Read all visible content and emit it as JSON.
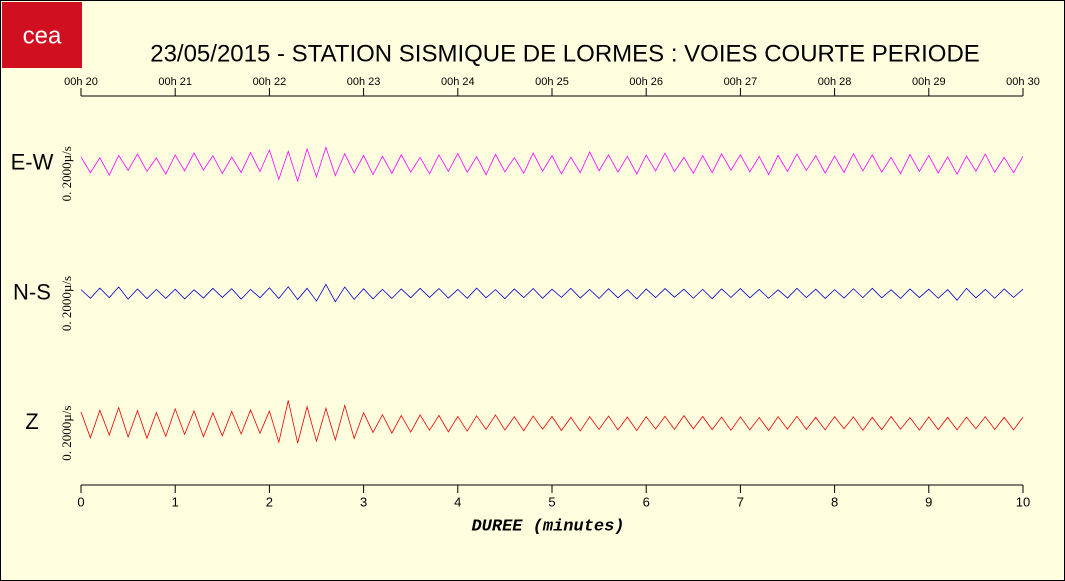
{
  "logo": "cea",
  "chart_data": {
    "type": "line",
    "title": "23/05/2015  -  STATION SISMIQUE DE LORMES : VOIES COURTE PERIODE",
    "x_label": "DUREE (minutes)",
    "xlim": [
      0,
      10
    ],
    "xticks": [
      0,
      1,
      2,
      3,
      4,
      5,
      6,
      7,
      8,
      9,
      10
    ],
    "top_xticks": [
      {
        "value": 0,
        "label": "00h 20"
      },
      {
        "value": 1,
        "label": "00h 21"
      },
      {
        "value": 2,
        "label": "00h 22"
      },
      {
        "value": 3,
        "label": "00h 23"
      },
      {
        "value": 4,
        "label": "00h 24"
      },
      {
        "value": 5,
        "label": "00h 25"
      },
      {
        "value": 6,
        "label": "00h 26"
      },
      {
        "value": 7,
        "label": "00h 27"
      },
      {
        "value": 8,
        "label": "00h 28"
      },
      {
        "value": 9,
        "label": "00h 29"
      },
      {
        "value": 10,
        "label": "00h 30"
      }
    ],
    "ylim": [
      -3000,
      3000
    ],
    "x": [
      0,
      0.1,
      0.2,
      0.3,
      0.4,
      0.5,
      0.6,
      0.7,
      0.8,
      0.9,
      1,
      1.1,
      1.2,
      1.3,
      1.4,
      1.5,
      1.6,
      1.7,
      1.8,
      1.9,
      2,
      2.1,
      2.2,
      2.3,
      2.4,
      2.5,
      2.6,
      2.7,
      2.8,
      2.9,
      3,
      3.1,
      3.2,
      3.3,
      3.4,
      3.5,
      3.6,
      3.7,
      3.8,
      3.9,
      4,
      4.1,
      4.2,
      4.3,
      4.4,
      4.5,
      4.6,
      4.7,
      4.8,
      4.9,
      5,
      5.1,
      5.2,
      5.3,
      5.4,
      5.5,
      5.6,
      5.7,
      5.8,
      5.9,
      6,
      6.1,
      6.2,
      6.3,
      6.4,
      6.5,
      6.6,
      6.7,
      6.8,
      6.9,
      7,
      7.1,
      7.2,
      7.3,
      7.4,
      7.5,
      7.6,
      7.7,
      7.8,
      7.9,
      8,
      8.1,
      8.2,
      8.3,
      8.4,
      8.5,
      8.6,
      8.7,
      8.8,
      8.9,
      9,
      9.1,
      9.2,
      9.3,
      9.4,
      9.5,
      9.6,
      9.7,
      9.8,
      9.9,
      10
    ],
    "series": [
      {
        "name": "E-W",
        "color": "#ff00ff",
        "scale_label": "0. 2000µ/s",
        "values": [
          320,
          -410,
          280,
          -520,
          390,
          -300,
          460,
          -350,
          270,
          -480,
          410,
          -330,
          500,
          -290,
          380,
          -450,
          310,
          -400,
          520,
          -360,
          640,
          -720,
          580,
          -800,
          690,
          -610,
          760,
          -540,
          470,
          -420,
          390,
          -500,
          350,
          -440,
          420,
          -380,
          300,
          -460,
          410,
          -350,
          480,
          -390,
          330,
          -510,
          440,
          -370,
          290,
          -430,
          500,
          -340,
          380,
          -460,
          310,
          -410,
          550,
          -320,
          420,
          -380,
          350,
          -470,
          400,
          -330,
          490,
          -360,
          300,
          -440,
          380,
          -410,
          460,
          -290,
          420,
          -370,
          340,
          -500,
          390,
          -350,
          450,
          -310,
          380,
          -430,
          360,
          -400,
          470,
          -330,
          410,
          -380,
          300,
          -460,
          430,
          -350,
          390,
          -420,
          320,
          -480,
          360,
          -340,
          450,
          -390,
          300,
          -410,
          350
        ]
      },
      {
        "name": "N-S",
        "color": "#0000cc",
        "scale_label": "0. 2000µ/s",
        "values": [
          180,
          -220,
          250,
          -190,
          300,
          -260,
          210,
          -240,
          190,
          -230,
          200,
          -250,
          170,
          -210,
          240,
          -180,
          220,
          -260,
          190,
          -200,
          260,
          -230,
          310,
          -280,
          240,
          -350,
          420,
          -380,
          300,
          -270,
          220,
          -250,
          190,
          -230,
          210,
          -200,
          240,
          -180,
          230,
          -210,
          190,
          -220,
          250,
          -200,
          180,
          -240,
          210,
          -190,
          230,
          -220,
          200,
          -180,
          240,
          -210,
          190,
          -230,
          220,
          -200,
          180,
          -250,
          210,
          -190,
          230,
          -170,
          200,
          -220,
          190,
          -240,
          210,
          -180,
          230,
          -200,
          190,
          -220,
          170,
          -210,
          240,
          -190,
          200,
          -230,
          180,
          -210,
          220,
          -190,
          240,
          -200,
          170,
          -230,
          210,
          -190,
          200,
          -220,
          180,
          -310,
          240,
          -200,
          190,
          -220,
          210,
          -180,
          200
        ]
      },
      {
        "name": "Z",
        "color": "#ee0000",
        "scale_label": "0. 2000µ/s",
        "values": [
          520,
          -680,
          600,
          -550,
          720,
          -640,
          580,
          -700,
          490,
          -610,
          660,
          -520,
          570,
          -630,
          480,
          -590,
          540,
          -500,
          610,
          -470,
          560,
          -880,
          1050,
          -920,
          760,
          -840,
          690,
          -780,
          820,
          -710,
          480,
          -430,
          390,
          -460,
          350,
          -410,
          380,
          -330,
          360,
          -400,
          310,
          -370,
          340,
          -290,
          380,
          -320,
          300,
          -350,
          330,
          -280,
          310,
          -340,
          270,
          -360,
          300,
          -290,
          330,
          -310,
          280,
          -340,
          300,
          -270,
          320,
          -290,
          350,
          -260,
          310,
          -300,
          280,
          -330,
          290,
          -310,
          260,
          -340,
          300,
          -280,
          320,
          -290,
          270,
          -310,
          300,
          -260,
          290,
          -330,
          270,
          -300,
          310,
          -280,
          260,
          -320,
          290,
          -300,
          270,
          -310,
          280,
          -260,
          300,
          -290,
          270,
          -310,
          280
        ]
      }
    ]
  }
}
